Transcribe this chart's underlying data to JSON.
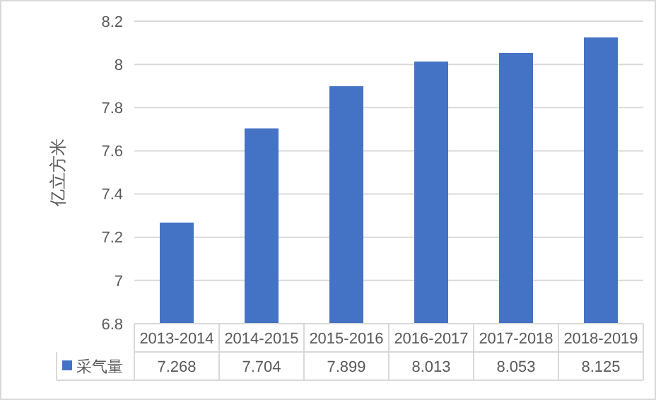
{
  "chart_data": {
    "type": "bar",
    "ylabel": "亿立方米",
    "categories": [
      "2013-2014",
      "2014-2015",
      "2015-2016",
      "2016-2017",
      "2017-2018",
      "2018-2019"
    ],
    "series": [
      {
        "name": "采气量",
        "color": "#4472c4",
        "values": [
          7.268,
          7.704,
          7.899,
          8.013,
          8.053,
          8.125
        ]
      }
    ],
    "ylim": [
      6.8,
      8.2
    ],
    "yticks": [
      6.8,
      {
        "value": 7,
        "label": "7"
      },
      7.2,
      7.4,
      7.6,
      7.8,
      {
        "value": 8,
        "label": "8"
      },
      8.2
    ],
    "grid": "y",
    "data_labels": true,
    "legend": "bottom"
  }
}
